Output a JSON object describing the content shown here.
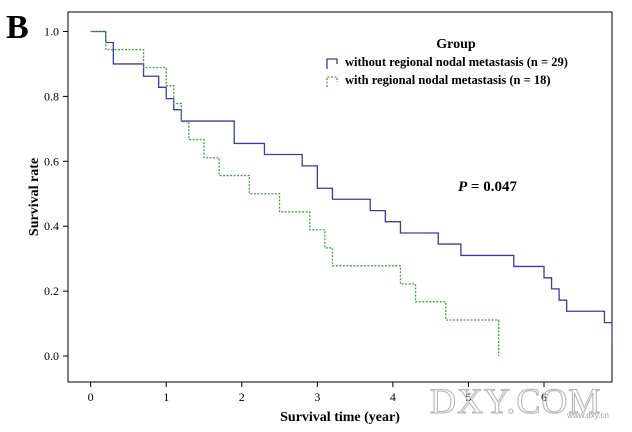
{
  "panel_label": "B",
  "annotation": {
    "prefix": "P",
    "text": " = 0.047"
  },
  "watermark": {
    "text": "DXY.COM",
    "small": "www.dxy.cn"
  },
  "chart_data": {
    "type": "line",
    "step": true,
    "title": "",
    "xlabel": "Survival time (year)",
    "ylabel": "Survival rate",
    "xlim": [
      -0.3,
      6.9
    ],
    "ylim": [
      -0.08,
      1.06
    ],
    "xticks": [
      0,
      1,
      2,
      3,
      4,
      5,
      6
    ],
    "yticks": [
      0.0,
      0.2,
      0.4,
      0.6,
      0.8,
      1.0
    ],
    "ytick_labels": [
      "0.0",
      "0.2",
      "0.4",
      "0.6",
      "0.8",
      "1.0"
    ],
    "legend": {
      "title": "Group",
      "position": "top-right"
    },
    "grid": false,
    "series": [
      {
        "name": "without regional nodal metastasis (n = 29)",
        "color": "#3a3aa8",
        "style": "solid",
        "x": [
          0,
          0.2,
          0.3,
          0.6,
          0.7,
          0.9,
          1.0,
          1.1,
          1.2,
          1.6,
          1.9,
          2.3,
          2.8,
          3.0,
          3.2,
          3.7,
          3.9,
          4.1,
          4.6,
          4.9,
          5.6,
          5.9,
          6.0,
          6.1,
          6.2,
          6.3,
          6.8,
          6.9
        ],
        "y": [
          1.0,
          0.966,
          0.9,
          0.9,
          0.862,
          0.828,
          0.793,
          0.759,
          0.724,
          0.724,
          0.655,
          0.621,
          0.586,
          0.517,
          0.483,
          0.448,
          0.414,
          0.379,
          0.345,
          0.31,
          0.276,
          0.276,
          0.241,
          0.207,
          0.172,
          0.138,
          0.103,
          0.069
        ]
      },
      {
        "name": "with regional nodal metastasis (n = 18)",
        "color": "#3aa83a",
        "style": "dotted",
        "x": [
          0,
          0.2,
          0.3,
          0.6,
          0.7,
          1.0,
          1.1,
          1.2,
          1.3,
          1.5,
          1.7,
          2.1,
          2.5,
          2.9,
          3.1,
          3.2,
          4.1,
          4.3,
          4.7,
          5.4
        ],
        "y": [
          1.0,
          0.944,
          0.944,
          0.944,
          0.889,
          0.833,
          0.778,
          0.722,
          0.667,
          0.611,
          0.556,
          0.5,
          0.444,
          0.389,
          0.333,
          0.278,
          0.222,
          0.167,
          0.111,
          0.056
        ]
      }
    ],
    "series_end_x": [
      6.9,
      5.4
    ],
    "series_end_y": [
      0.033,
      0.0
    ]
  }
}
